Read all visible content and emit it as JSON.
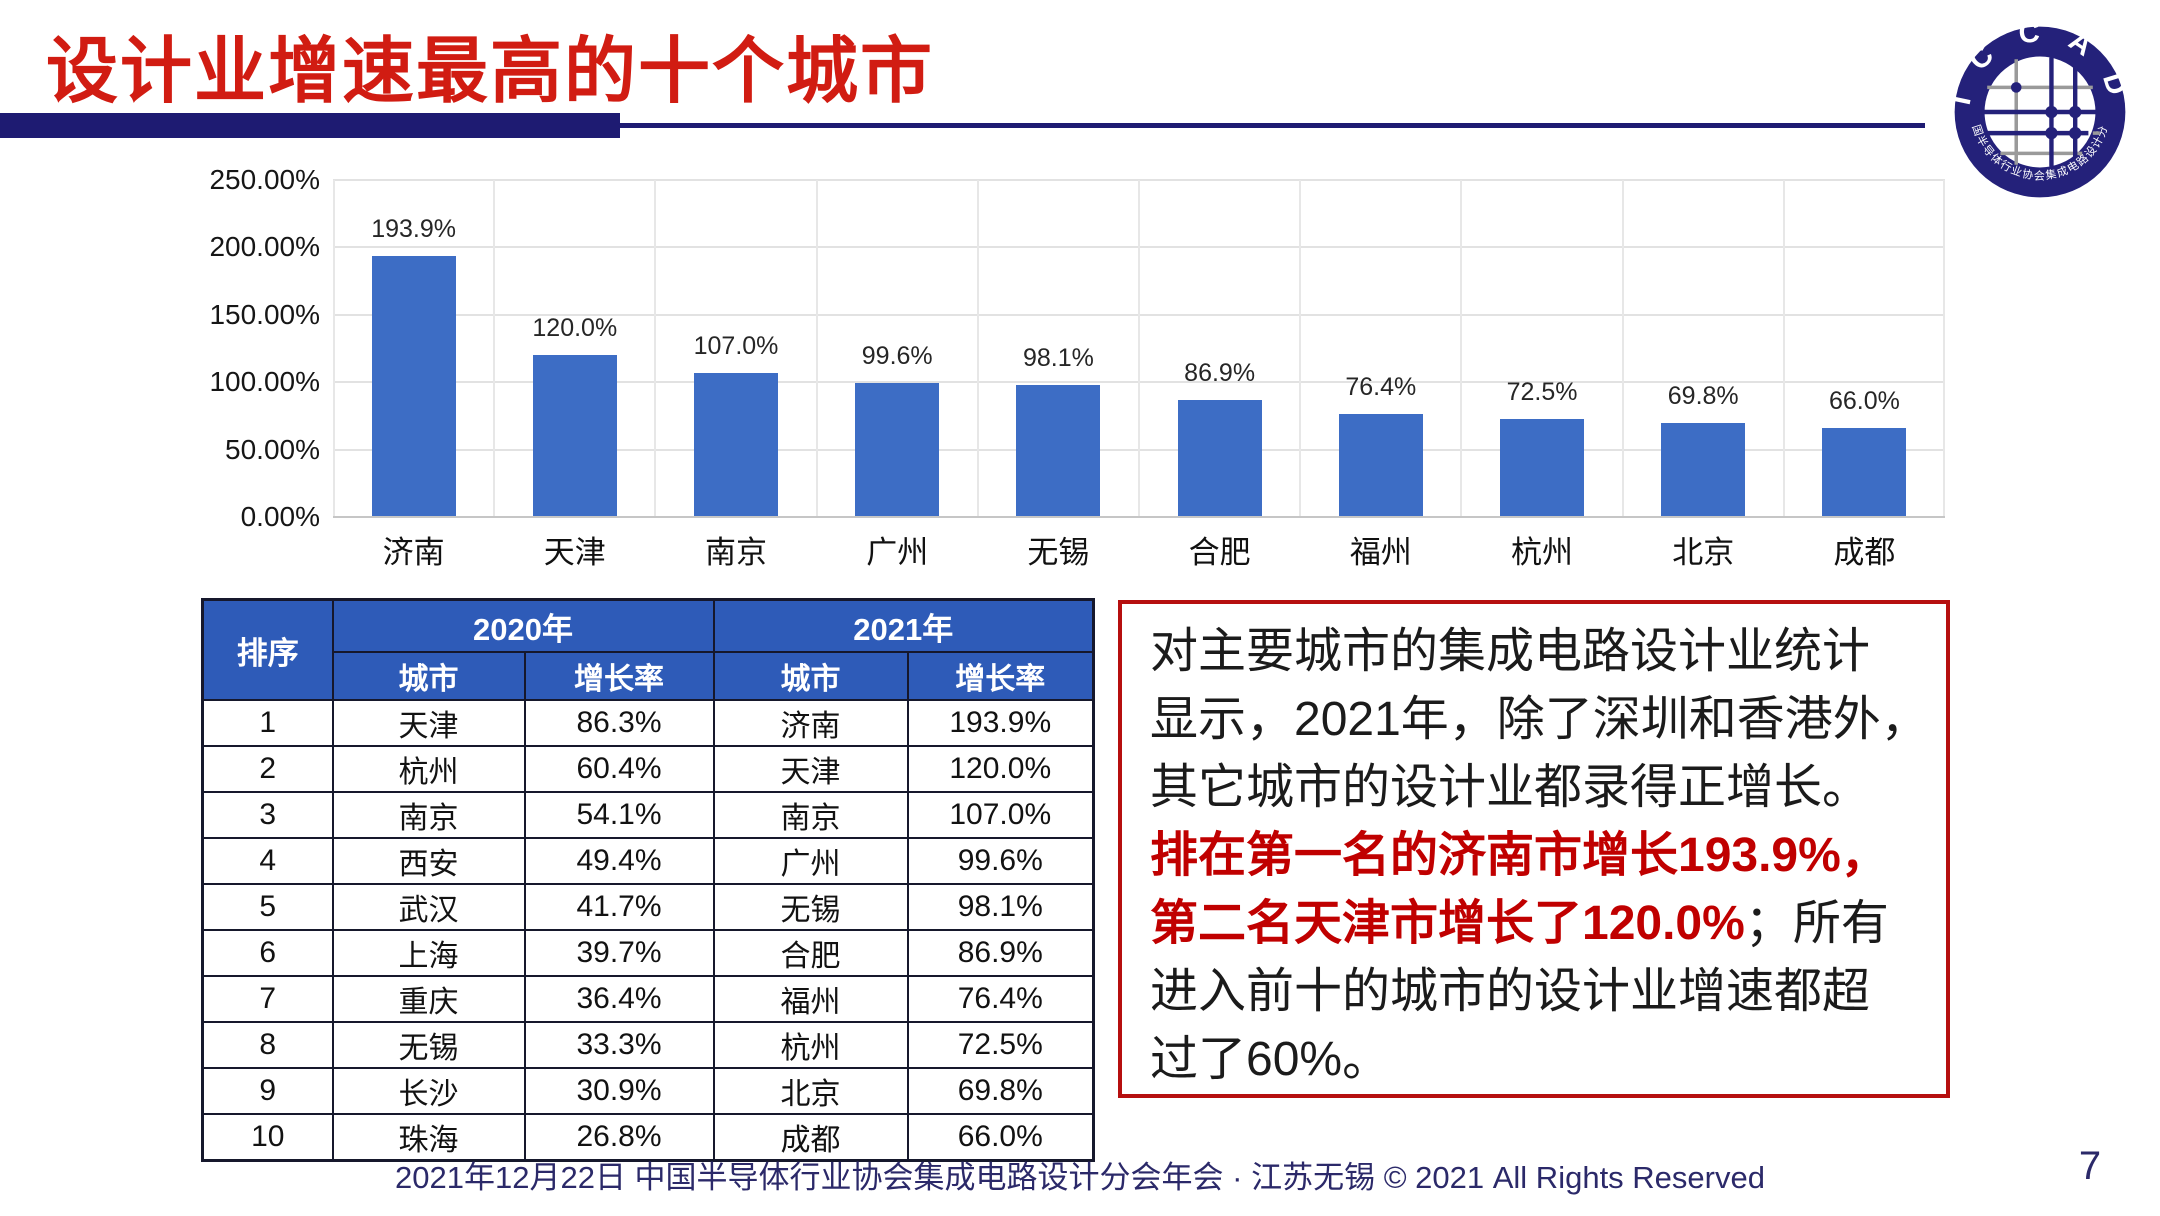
{
  "title": "设计业增速最高的十个城市",
  "logo": {
    "ring_text_top": "ICCAD",
    "ring_text_bottom": "中国半导体行业协会集成电路设计分会"
  },
  "chart_data": {
    "type": "bar",
    "title": "",
    "xlabel": "",
    "ylabel": "",
    "categories": [
      "济南",
      "天津",
      "南京",
      "广州",
      "无锡",
      "合肥",
      "福州",
      "杭州",
      "北京",
      "成都"
    ],
    "values": [
      193.9,
      120.0,
      107.0,
      99.6,
      98.1,
      86.9,
      76.4,
      72.5,
      69.8,
      66.0
    ],
    "value_labels": [
      "193.9%",
      "120.0%",
      "107.0%",
      "99.6%",
      "98.1%",
      "86.9%",
      "76.4%",
      "72.5%",
      "69.8%",
      "66.0%"
    ],
    "y_ticks": [
      "250.00%",
      "200.00%",
      "150.00%",
      "100.00%",
      "50.00%",
      "0.00%"
    ],
    "ylim": [
      0,
      250
    ],
    "grid": true,
    "legend": "none",
    "bar_color": "#3d6dc5"
  },
  "table": {
    "header": {
      "rank": "排序",
      "year_2020": "2020年",
      "year_2021": "2021年",
      "city": "城市",
      "growth": "增长率"
    },
    "rows": [
      [
        "1",
        "天津",
        "86.3%",
        "济南",
        "193.9%"
      ],
      [
        "2",
        "杭州",
        "60.4%",
        "天津",
        "120.0%"
      ],
      [
        "3",
        "南京",
        "54.1%",
        "南京",
        "107.0%"
      ],
      [
        "4",
        "西安",
        "49.4%",
        "广州",
        "99.6%"
      ],
      [
        "5",
        "武汉",
        "41.7%",
        "无锡",
        "98.1%"
      ],
      [
        "6",
        "上海",
        "39.7%",
        "合肥",
        "86.9%"
      ],
      [
        "7",
        "重庆",
        "36.4%",
        "福州",
        "76.4%"
      ],
      [
        "8",
        "无锡",
        "33.3%",
        "杭州",
        "72.5%"
      ],
      [
        "9",
        "长沙",
        "30.9%",
        "北京",
        "69.8%"
      ],
      [
        "10",
        "珠海",
        "26.8%",
        "成都",
        "66.0%"
      ]
    ]
  },
  "note": {
    "lines": [
      [
        {
          "text": "对主要城市的集成电路设计业统计",
          "style": "normal"
        }
      ],
      [
        {
          "text": "显示，2021年，除了深圳和香港外，",
          "style": "normal"
        }
      ],
      [
        {
          "text": "其它城市的设计业都录得正增长。",
          "style": "normal"
        }
      ],
      [
        {
          "text": "排在第一名的济南市增长193.9%，",
          "style": "em"
        }
      ],
      [
        {
          "text": "第二名天津市增长了120.0%",
          "style": "em"
        },
        {
          "text": "；所有",
          "style": "normal"
        }
      ],
      [
        {
          "text": "进入前十的城市的设计业增速都超",
          "style": "normal"
        }
      ],
      [
        {
          "text": "过了60%。",
          "style": "normal"
        }
      ]
    ]
  },
  "footer": {
    "text": "2021年12月22日 中国半导体行业协会集成电路设计分会年会 · 江苏无锡 © 2021 All Rights Reserved",
    "page": "7"
  },
  "colors": {
    "title_red": "#d11c12",
    "rule_navy": "#1e1b72",
    "bar_blue": "#3d6dc5",
    "table_header_blue": "#2e5bb8",
    "note_border_red": "#b60f0f",
    "note_em_red": "#c00000",
    "footer_navy": "#2b2969",
    "gridline_gray": "#e2e2e2"
  }
}
